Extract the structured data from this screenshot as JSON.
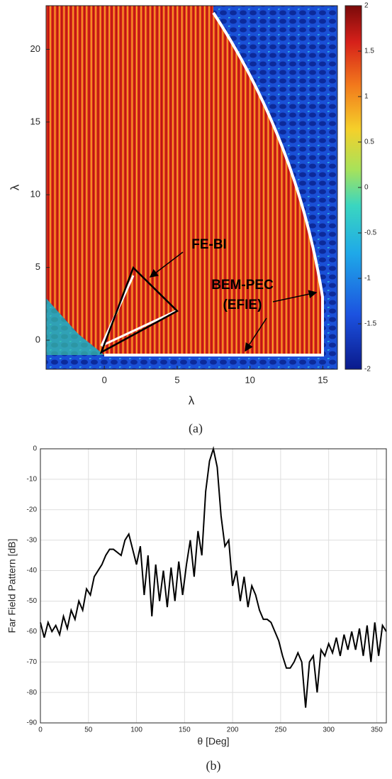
{
  "chart_data": [
    {
      "type": "heatmap",
      "xlabel": "λ",
      "ylabel": "λ",
      "xlim": [
        -4,
        16
      ],
      "ylim": [
        -2,
        23
      ],
      "xticks": [
        0,
        5,
        10,
        15
      ],
      "yticks": [
        0,
        5,
        10,
        15,
        20
      ],
      "clim": [
        -2,
        2
      ],
      "cticks": [
        -2,
        -1.5,
        -1,
        -0.5,
        0,
        0.5,
        1,
        1.5,
        2
      ],
      "annotations": [
        "FE-BI",
        "BEM-PEC",
        "(EFIE)"
      ],
      "caption": "(a)"
    },
    {
      "type": "line",
      "xlabel": "θ [Deg]",
      "ylabel": "Far Field Pattern  [dB]",
      "caption": "(b)",
      "xlim": [
        0,
        360
      ],
      "ylim": [
        -90,
        0
      ],
      "xticks": [
        0,
        50,
        100,
        150,
        200,
        250,
        300,
        350
      ],
      "yticks": [
        -90,
        -80,
        -70,
        -60,
        -50,
        -40,
        -30,
        -20,
        -10,
        0
      ],
      "grid": true,
      "color": "#000000",
      "x": [
        0,
        4,
        8,
        12,
        16,
        20,
        24,
        28,
        32,
        36,
        40,
        44,
        48,
        52,
        56,
        60,
        64,
        68,
        72,
        76,
        80,
        84,
        88,
        92,
        96,
        100,
        104,
        108,
        112,
        116,
        120,
        124,
        128,
        132,
        136,
        140,
        144,
        148,
        152,
        156,
        160,
        164,
        168,
        172,
        176,
        180,
        184,
        188,
        192,
        196,
        200,
        204,
        208,
        212,
        216,
        220,
        224,
        228,
        232,
        236,
        240,
        244,
        248,
        252,
        256,
        260,
        264,
        268,
        272,
        276,
        280,
        284,
        288,
        292,
        296,
        300,
        304,
        308,
        312,
        316,
        320,
        324,
        328,
        332,
        336,
        340,
        344,
        348,
        352,
        356,
        360
      ],
      "values": [
        -57,
        -62,
        -57,
        -60,
        -58,
        -61,
        -55,
        -59,
        -53,
        -56,
        -50,
        -53,
        -46,
        -48,
        -42,
        -40,
        -38,
        -35,
        -33,
        -33,
        -34,
        -35,
        -30,
        -28,
        -33,
        -38,
        -32,
        -48,
        -35,
        -55,
        -38,
        -50,
        -40,
        -52,
        -39,
        -50,
        -37,
        -48,
        -38,
        -30,
        -42,
        -27,
        -35,
        -14,
        -4,
        0,
        -6,
        -22,
        -32,
        -30,
        -45,
        -40,
        -50,
        -42,
        -52,
        -45,
        -48,
        -53,
        -56,
        -56,
        -57,
        -60,
        -63,
        -68,
        -72,
        -72,
        -70,
        -67,
        -70,
        -85,
        -70,
        -68,
        -80,
        -66,
        -68,
        -64,
        -67,
        -62,
        -68,
        -61,
        -66,
        -60,
        -66,
        -59,
        -68,
        -58,
        -70,
        -57,
        -68,
        -58,
        -60
      ]
    }
  ]
}
